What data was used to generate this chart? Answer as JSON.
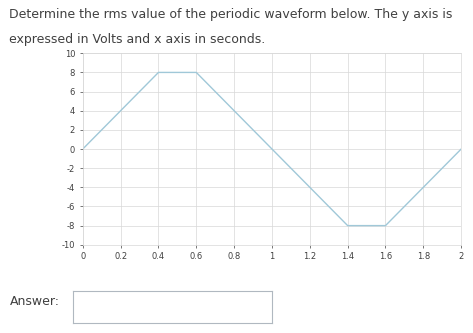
{
  "question_text_line1": "Determine the rms value of the periodic waveform below. The y axis is",
  "question_text_line2": "expressed in Volts and x axis in seconds.",
  "answer_label": "Answer:",
  "waveform_x": [
    0,
    0.4,
    0.6,
    1.0,
    1.4,
    1.6,
    2.0
  ],
  "waveform_y": [
    0,
    8,
    8,
    0,
    -8,
    -8,
    0
  ],
  "xlim": [
    0,
    2
  ],
  "ylim": [
    -10,
    10
  ],
  "xticks": [
    0,
    0.2,
    0.4,
    0.6,
    0.8,
    1.0,
    1.2,
    1.4,
    1.6,
    1.8,
    2.0
  ],
  "yticks": [
    -10,
    -8,
    -6,
    -4,
    -2,
    0,
    2,
    4,
    6,
    8,
    10
  ],
  "line_color": "#a0c8d8",
  "grid_color": "#d8d8d8",
  "background_color": "#ffffff",
  "text_color": "#404040",
  "tick_fontsize": 6,
  "question_fontsize": 9,
  "answer_fontsize": 9
}
